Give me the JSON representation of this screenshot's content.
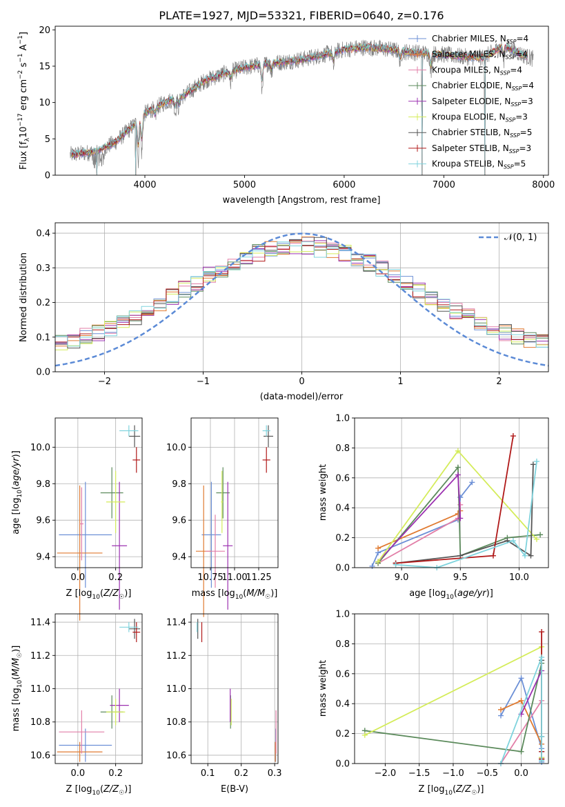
{
  "title": "PLATE=1927, MJD=53321, FIBERID=0640, z=0.176",
  "colors": {
    "Chabrier MILES": "#6b8fd6",
    "Salpeter MILES": "#e07a30",
    "Kroupa MILES": "#e27ea7",
    "Chabrier ELODIE": "#5b8a5b",
    "Salpeter ELODIE": "#9b30b0",
    "Kroupa ELODIE": "#d4ec5a",
    "Chabrier STELIB": "#555555",
    "Salpeter STELIB": "#b01818",
    "Kroupa STELIB": "#7fd3dd",
    "data": "#808080",
    "normal": "#5b8ad6"
  },
  "legend": [
    {
      "name": "Chabrier MILES",
      "nssp": "4"
    },
    {
      "name": "Salpeter MILES",
      "nssp": "4"
    },
    {
      "name": "Kroupa MILES",
      "nssp": "4"
    },
    {
      "name": "Chabrier ELODIE",
      "nssp": "4"
    },
    {
      "name": "Salpeter ELODIE",
      "nssp": "3"
    },
    {
      "name": "Kroupa ELODIE",
      "nssp": "3"
    },
    {
      "name": "Chabrier STELIB",
      "nssp": "5"
    },
    {
      "name": "Salpeter STELIB",
      "nssp": "3"
    },
    {
      "name": "Kroupa STELIB",
      "nssp": "5"
    }
  ],
  "legend_nssp_prefix": "N",
  "legend_nssp_sub": "SSP",
  "chart_data": [
    {
      "id": "spectrum",
      "type": "line",
      "xlabel": "wavelength [Angstrom, rest frame]",
      "ylabel": "Flux [f_λ 10^-17 erg cm^-2 s^-1 A^-1]",
      "xlim": [
        3100,
        8050
      ],
      "ylim": [
        0,
        20.5
      ],
      "xticks": [
        4000,
        5000,
        6000,
        7000,
        8000
      ],
      "yticks": [
        0,
        5,
        10,
        15,
        20
      ],
      "continuum": [
        [
          3250,
          2.8
        ],
        [
          3500,
          3.2
        ],
        [
          3700,
          4.5
        ],
        [
          3900,
          7.0
        ],
        [
          4000,
          8.5
        ],
        [
          4200,
          10.0
        ],
        [
          4400,
          11.0
        ],
        [
          4600,
          13.0
        ],
        [
          4800,
          14.0
        ],
        [
          5000,
          14.8
        ],
        [
          5200,
          15.3
        ],
        [
          5400,
          15.6
        ],
        [
          5600,
          16.0
        ],
        [
          5800,
          16.6
        ],
        [
          6000,
          17.3
        ],
        [
          6200,
          17.6
        ],
        [
          6400,
          17.4
        ],
        [
          6600,
          17.0
        ],
        [
          6800,
          16.8
        ],
        [
          7000,
          16.6
        ],
        [
          7200,
          16.3
        ],
        [
          7400,
          16.2
        ],
        [
          7600,
          17.8
        ],
        [
          7800,
          16.5
        ],
        [
          7900,
          16.0
        ]
      ],
      "absorption": [
        [
          3934,
          5.5
        ],
        [
          3969,
          5.0
        ],
        [
          4102,
          1.5
        ],
        [
          4305,
          2.0
        ],
        [
          4340,
          1.5
        ],
        [
          4861,
          1.5
        ],
        [
          5175,
          3.5
        ],
        [
          5270,
          1.2
        ],
        [
          5893,
          2.0
        ],
        [
          6563,
          1.5
        ],
        [
          6870,
          2.5
        ],
        [
          7600,
          2.0
        ]
      ],
      "model_dropouts": [
        3520,
        3910,
        6780,
        7410
      ],
      "legend_loc": "upper right",
      "grid": false
    },
    {
      "id": "residual-histogram",
      "type": "histogram",
      "xlabel": "(data-model)/error",
      "ylabel": "Normed distribution",
      "xlim": [
        -2.5,
        2.5
      ],
      "ylim": [
        0,
        0.43
      ],
      "xticks": [
        -2,
        -1,
        0,
        1,
        2
      ],
      "yticks": [
        0,
        0.1,
        0.2,
        0.3,
        0.4
      ],
      "bin_width": 0.125,
      "reference_label": "𝒩(0, 1)",
      "grid": true
    },
    {
      "id": "age-vs-z",
      "type": "errorbar",
      "xlabel": "Z [log10(Z/Z☉)]",
      "ylabel": "age [log10(age/yr)]",
      "xlim": [
        -0.12,
        0.34
      ],
      "ylim": [
        9.34,
        10.16
      ],
      "xticks": [
        0.0,
        0.2
      ],
      "yticks": [
        9.4,
        9.6,
        9.8,
        10.0
      ],
      "points": [
        {
          "s": "Chabrier MILES",
          "x": 0.04,
          "y": 9.52,
          "xerr": 0.14,
          "yerr": 0.29
        },
        {
          "s": "Salpeter MILES",
          "x": 0.01,
          "y": 9.42,
          "xerr": 0.12,
          "yerr": 0.37
        },
        {
          "s": "Kroupa MILES",
          "x": 0.02,
          "y": 9.58,
          "xerr": 0.01,
          "yerr": 0.2
        },
        {
          "s": "Chabrier ELODIE",
          "x": 0.18,
          "y": 9.75,
          "xerr": 0.06,
          "yerr": 0.14
        },
        {
          "s": "Salpeter ELODIE",
          "x": 0.22,
          "y": 9.46,
          "xerr": 0.04,
          "yerr": 0.35
        },
        {
          "s": "Kroupa ELODIE",
          "x": 0.2,
          "y": 9.7,
          "xerr": 0.05,
          "yerr": 0.17
        },
        {
          "s": "Chabrier STELIB",
          "x": 0.3,
          "y": 10.06,
          "xerr": 0.03,
          "yerr": 0.06
        },
        {
          "s": "Salpeter STELIB",
          "x": 0.31,
          "y": 9.93,
          "xerr": 0.02,
          "yerr": 0.07
        },
        {
          "s": "Kroupa STELIB",
          "x": 0.27,
          "y": 10.09,
          "xerr": 0.05,
          "yerr": 0.03
        }
      ],
      "grid": true
    },
    {
      "id": "age-vs-mass",
      "type": "errorbar",
      "xlabel": "mass [log10(M/M☉)]",
      "ylabel": "",
      "xlim": [
        10.55,
        11.45
      ],
      "ylim": [
        9.34,
        10.16
      ],
      "xticks": [
        10.75,
        11.0,
        11.25
      ],
      "xticklabels": [
        "10.75",
        "11.00",
        "11.25"
      ],
      "yticks": [
        9.4,
        9.6,
        9.8,
        10.0
      ],
      "points": [
        {
          "s": "Chabrier MILES",
          "x": 10.76,
          "y": 9.52,
          "xerr": 0.1,
          "yerr": 0.29
        },
        {
          "s": "Salpeter MILES",
          "x": 10.68,
          "y": 9.43,
          "xerr": 0.08,
          "yerr": 0.36
        },
        {
          "s": "Kroupa MILES",
          "x": 10.8,
          "y": 9.43,
          "xerr": 0.1,
          "yerr": 0.2
        },
        {
          "s": "Chabrier ELODIE",
          "x": 10.88,
          "y": 9.75,
          "xerr": 0.07,
          "yerr": 0.14
        },
        {
          "s": "Salpeter ELODIE",
          "x": 10.93,
          "y": 9.46,
          "xerr": 0.05,
          "yerr": 0.35
        },
        {
          "s": "Kroupa ELODIE",
          "x": 10.87,
          "y": 9.7,
          "xerr": 0.01,
          "yerr": 0.17
        },
        {
          "s": "Chabrier STELIB",
          "x": 11.35,
          "y": 10.06,
          "xerr": 0.05,
          "yerr": 0.06
        },
        {
          "s": "Salpeter STELIB",
          "x": 11.33,
          "y": 9.93,
          "xerr": 0.04,
          "yerr": 0.07
        },
        {
          "s": "Kroupa STELIB",
          "x": 11.33,
          "y": 10.09,
          "xerr": 0.04,
          "yerr": 0.03
        }
      ],
      "grid": true
    },
    {
      "id": "mass-weight-vs-age",
      "type": "line",
      "xlabel": "age [log10(age/yr)]",
      "ylabel": "mass weight",
      "xlim": [
        8.6,
        10.25
      ],
      "ylim": [
        0,
        1
      ],
      "xticks": [
        9.0,
        9.5,
        10.0
      ],
      "yticks": [
        0,
        0.2,
        0.4,
        0.6,
        0.8,
        1.0
      ],
      "series": [
        {
          "name": "Chabrier MILES",
          "x": [
            8.75,
            8.8,
            9.48,
            9.5,
            9.6
          ],
          "y": [
            0.01,
            0.1,
            0.32,
            0.47,
            0.57
          ]
        },
        {
          "name": "Salpeter MILES",
          "x": [
            8.8,
            9.48,
            9.5
          ],
          "y": [
            0.13,
            0.36,
            0.38
          ]
        },
        {
          "name": "Kroupa MILES",
          "x": [
            8.8,
            9.48,
            9.5
          ],
          "y": [
            0.03,
            0.33,
            0.42
          ]
        },
        {
          "name": "Chabrier ELODIE",
          "x": [
            8.8,
            9.48,
            9.5,
            9.9,
            10.18
          ],
          "y": [
            0.03,
            0.67,
            0.08,
            0.2,
            0.22
          ]
        },
        {
          "name": "Salpeter ELODIE",
          "x": [
            8.8,
            9.48,
            9.5
          ],
          "y": [
            0.04,
            0.62,
            0.33
          ]
        },
        {
          "name": "Kroupa ELODIE",
          "x": [
            8.8,
            9.48,
            10.15
          ],
          "y": [
            0.04,
            0.78,
            0.19
          ]
        },
        {
          "name": "Chabrier STELIB",
          "x": [
            8.95,
            9.5,
            9.9,
            10.1,
            10.12
          ],
          "y": [
            0.03,
            0.08,
            0.18,
            0.08,
            0.69
          ]
        },
        {
          "name": "Salpeter STELIB",
          "x": [
            8.95,
            9.78,
            9.95
          ],
          "y": [
            0.03,
            0.08,
            0.88
          ]
        },
        {
          "name": "Kroupa STELIB",
          "x": [
            8.95,
            9.3,
            9.95,
            10.05,
            10.15
          ],
          "y": [
            0.02,
            0.0,
            0.18,
            0.08,
            0.71
          ]
        }
      ],
      "grid": true
    },
    {
      "id": "mass-vs-z",
      "type": "errorbar",
      "xlabel": "Z [log10(Z/Z☉)]",
      "ylabel": "mass [log10(M/M☉)]",
      "xlim": [
        -0.12,
        0.34
      ],
      "ylim": [
        10.55,
        11.45
      ],
      "xticks": [
        0.0,
        0.2
      ],
      "yticks": [
        10.6,
        10.8,
        11.0,
        11.2,
        11.4
      ],
      "points": [
        {
          "s": "Chabrier MILES",
          "x": 0.04,
          "y": 10.66,
          "xerr": 0.14,
          "yerr": 0.1
        },
        {
          "s": "Salpeter MILES",
          "x": 0.01,
          "y": 10.62,
          "xerr": 0.12,
          "yerr": 0.06
        },
        {
          "s": "Kroupa MILES",
          "x": 0.02,
          "y": 10.74,
          "xerr": 0.12,
          "yerr": 0.13
        },
        {
          "s": "Chabrier ELODIE",
          "x": 0.18,
          "y": 10.86,
          "xerr": 0.06,
          "yerr": 0.1
        },
        {
          "s": "Salpeter ELODIE",
          "x": 0.22,
          "y": 10.9,
          "xerr": 0.05,
          "yerr": 0.1
        },
        {
          "s": "Kroupa ELODIE",
          "x": 0.2,
          "y": 10.86,
          "xerr": 0.05,
          "yerr": 0.08
        },
        {
          "s": "Chabrier STELIB",
          "x": 0.3,
          "y": 11.36,
          "xerr": 0.03,
          "yerr": 0.06
        },
        {
          "s": "Salpeter STELIB",
          "x": 0.31,
          "y": 11.34,
          "xerr": 0.02,
          "yerr": 0.06
        },
        {
          "s": "Kroupa STELIB",
          "x": 0.27,
          "y": 11.37,
          "xerr": 0.05,
          "yerr": 0.03
        }
      ],
      "grid": true
    },
    {
      "id": "mass-vs-ebv",
      "type": "errorbar",
      "xlabel": "E(B-V)",
      "ylabel": "",
      "xlim": [
        0.05,
        0.31
      ],
      "ylim": [
        10.55,
        11.45
      ],
      "xticks": [
        0.1,
        0.2,
        0.3
      ],
      "yticks": [
        10.6,
        10.8,
        11.0,
        11.2,
        11.4
      ],
      "points": [
        {
          "s": "Chabrier MILES",
          "x": 0.303,
          "y": 10.66,
          "xerr": 0.0,
          "yerr": 0.1
        },
        {
          "s": "Salpeter MILES",
          "x": 0.302,
          "y": 10.62,
          "xerr": 0.0,
          "yerr": 0.06
        },
        {
          "s": "Kroupa MILES",
          "x": 0.304,
          "y": 10.74,
          "xerr": 0.0,
          "yerr": 0.13
        },
        {
          "s": "Chabrier ELODIE",
          "x": 0.168,
          "y": 10.86,
          "xerr": 0.0,
          "yerr": 0.1
        },
        {
          "s": "Salpeter ELODIE",
          "x": 0.167,
          "y": 10.9,
          "xerr": 0.0,
          "yerr": 0.1
        },
        {
          "s": "Kroupa ELODIE",
          "x": 0.17,
          "y": 10.86,
          "xerr": 0.0,
          "yerr": 0.08
        },
        {
          "s": "Chabrier STELIB",
          "x": 0.07,
          "y": 11.36,
          "xerr": 0.0,
          "yerr": 0.06
        },
        {
          "s": "Salpeter STELIB",
          "x": 0.082,
          "y": 11.34,
          "xerr": 0.0,
          "yerr": 0.06
        },
        {
          "s": "Kroupa STELIB",
          "x": 0.068,
          "y": 11.37,
          "xerr": 0.0,
          "yerr": 0.03
        }
      ],
      "grid": true
    },
    {
      "id": "mass-weight-vs-z",
      "type": "line",
      "xlabel": "Z [log10(Z/Z☉)]",
      "ylabel": "mass weight",
      "xlim": [
        -2.45,
        0.4
      ],
      "ylim": [
        0,
        1
      ],
      "xticks": [
        -2.0,
        -1.5,
        -1.0,
        -0.5,
        0.0
      ],
      "yticks": [
        0,
        0.2,
        0.4,
        0.6,
        0.8,
        1.0
      ],
      "series": [
        {
          "name": "Chabrier MILES",
          "x": [
            -0.3,
            0.0,
            0.3,
            0.3
          ],
          "y": [
            0.32,
            0.57,
            0.1,
            0.01
          ]
        },
        {
          "name": "Salpeter MILES",
          "x": [
            -0.3,
            0.0,
            0.3
          ],
          "y": [
            0.36,
            0.42,
            0.13
          ]
        },
        {
          "name": "Kroupa MILES",
          "x": [
            -0.3,
            0.3,
            0.3
          ],
          "y": [
            0.0,
            0.42,
            0.03
          ]
        },
        {
          "name": "Chabrier ELODIE",
          "x": [
            -2.3,
            0.0,
            0.3,
            0.3
          ],
          "y": [
            0.22,
            0.08,
            0.67,
            0.03
          ]
        },
        {
          "name": "Salpeter ELODIE",
          "x": [
            0.0,
            0.3,
            0.3
          ],
          "y": [
            0.33,
            0.62,
            0.04
          ]
        },
        {
          "name": "Kroupa ELODIE",
          "x": [
            -2.3,
            0.3,
            0.3
          ],
          "y": [
            0.19,
            0.78,
            0.04
          ]
        },
        {
          "name": "Chabrier STELIB",
          "x": [
            0.3,
            0.3,
            0.3,
            0.3
          ],
          "y": [
            0.69,
            0.18,
            0.08,
            0.03
          ]
        },
        {
          "name": "Salpeter STELIB",
          "x": [
            0.3,
            0.3,
            0.3
          ],
          "y": [
            0.88,
            0.08,
            0.03
          ]
        },
        {
          "name": "Kroupa STELIB",
          "x": [
            -0.3,
            0.3,
            0.3,
            0.3
          ],
          "y": [
            0.0,
            0.71,
            0.18,
            0.02
          ]
        }
      ],
      "grid": true
    }
  ]
}
